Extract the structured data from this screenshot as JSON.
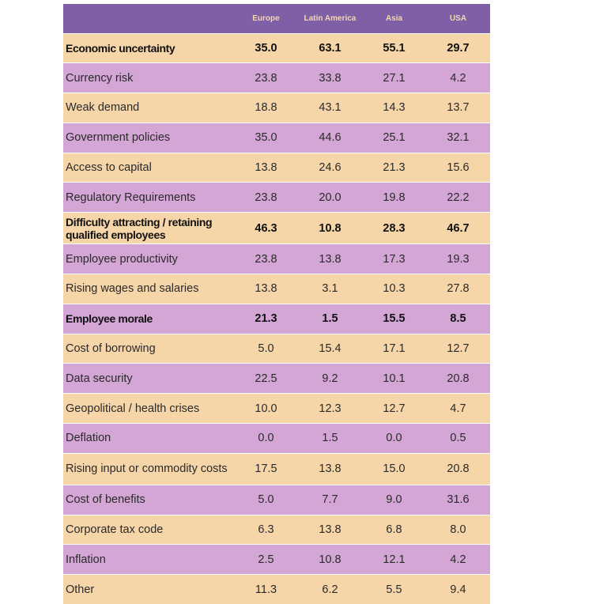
{
  "chart_data": {
    "type": "table",
    "columns": [
      "",
      "Europe",
      "Latin America",
      "Asia",
      "USA"
    ],
    "rows": [
      {
        "label": "Economic uncertainty",
        "values": [
          "35.0",
          "63.1",
          "55.1",
          "29.7"
        ],
        "bold": true
      },
      {
        "label": "Currency risk",
        "values": [
          "23.8",
          "33.8",
          "27.1",
          "4.2"
        ],
        "bold": false
      },
      {
        "label": "Weak demand",
        "values": [
          "18.8",
          "43.1",
          "14.3",
          "13.7"
        ],
        "bold": false
      },
      {
        "label": "Government policies",
        "values": [
          "35.0",
          "44.6",
          "25.1",
          "32.1"
        ],
        "bold": false
      },
      {
        "label": "Access to capital",
        "values": [
          "13.8",
          "24.6",
          "21.3",
          "15.6"
        ],
        "bold": false
      },
      {
        "label": "Regulatory Requirements",
        "values": [
          "23.8",
          "20.0",
          "19.8",
          "22.2"
        ],
        "bold": false
      },
      {
        "label": "Difficulty attracting / retaining qualified employees",
        "values": [
          "46.3",
          "10.8",
          "28.3",
          "46.7"
        ],
        "bold": true
      },
      {
        "label": "Employee productivity",
        "values": [
          "23.8",
          "13.8",
          "17.3",
          "19.3"
        ],
        "bold": false
      },
      {
        "label": "Rising wages and salaries",
        "values": [
          "13.8",
          "3.1",
          "10.3",
          "27.8"
        ],
        "bold": false
      },
      {
        "label": "Employee morale",
        "values": [
          "21.3",
          "1.5",
          "15.5",
          "8.5"
        ],
        "bold": true
      },
      {
        "label": "Cost of borrowing",
        "values": [
          "5.0",
          "15.4",
          "17.1",
          "12.7"
        ],
        "bold": false
      },
      {
        "label": "Data security",
        "values": [
          "22.5",
          "9.2",
          "10.1",
          "20.8"
        ],
        "bold": false
      },
      {
        "label": "Geopolitical / health crises",
        "values": [
          "10.0",
          "12.3",
          "12.7",
          "4.7"
        ],
        "bold": false
      },
      {
        "label": "Deflation",
        "values": [
          "0.0",
          "1.5",
          "0.0",
          "0.5"
        ],
        "bold": false
      },
      {
        "label": "Rising input or commodity costs",
        "values": [
          "17.5",
          "13.8",
          "15.0",
          "20.8"
        ],
        "bold": false
      },
      {
        "label": "Cost of benefits",
        "values": [
          "5.0",
          "7.7",
          "9.0",
          "31.6"
        ],
        "bold": false
      },
      {
        "label": "Corporate tax code",
        "values": [
          "6.3",
          "13.8",
          "6.8",
          "8.0"
        ],
        "bold": false
      },
      {
        "label": "Inflation",
        "values": [
          "2.5",
          "10.8",
          "12.1",
          "4.2"
        ],
        "bold": false
      },
      {
        "label": "Other",
        "values": [
          "11.3",
          "6.2",
          "5.5",
          "9.4"
        ],
        "bold": false
      }
    ]
  },
  "colors": {
    "header_bg": "#7f5fa6",
    "header_text": "#f3d7ae",
    "row_peach": "#f6d6a8",
    "row_lilac": "#d4a6d6"
  }
}
